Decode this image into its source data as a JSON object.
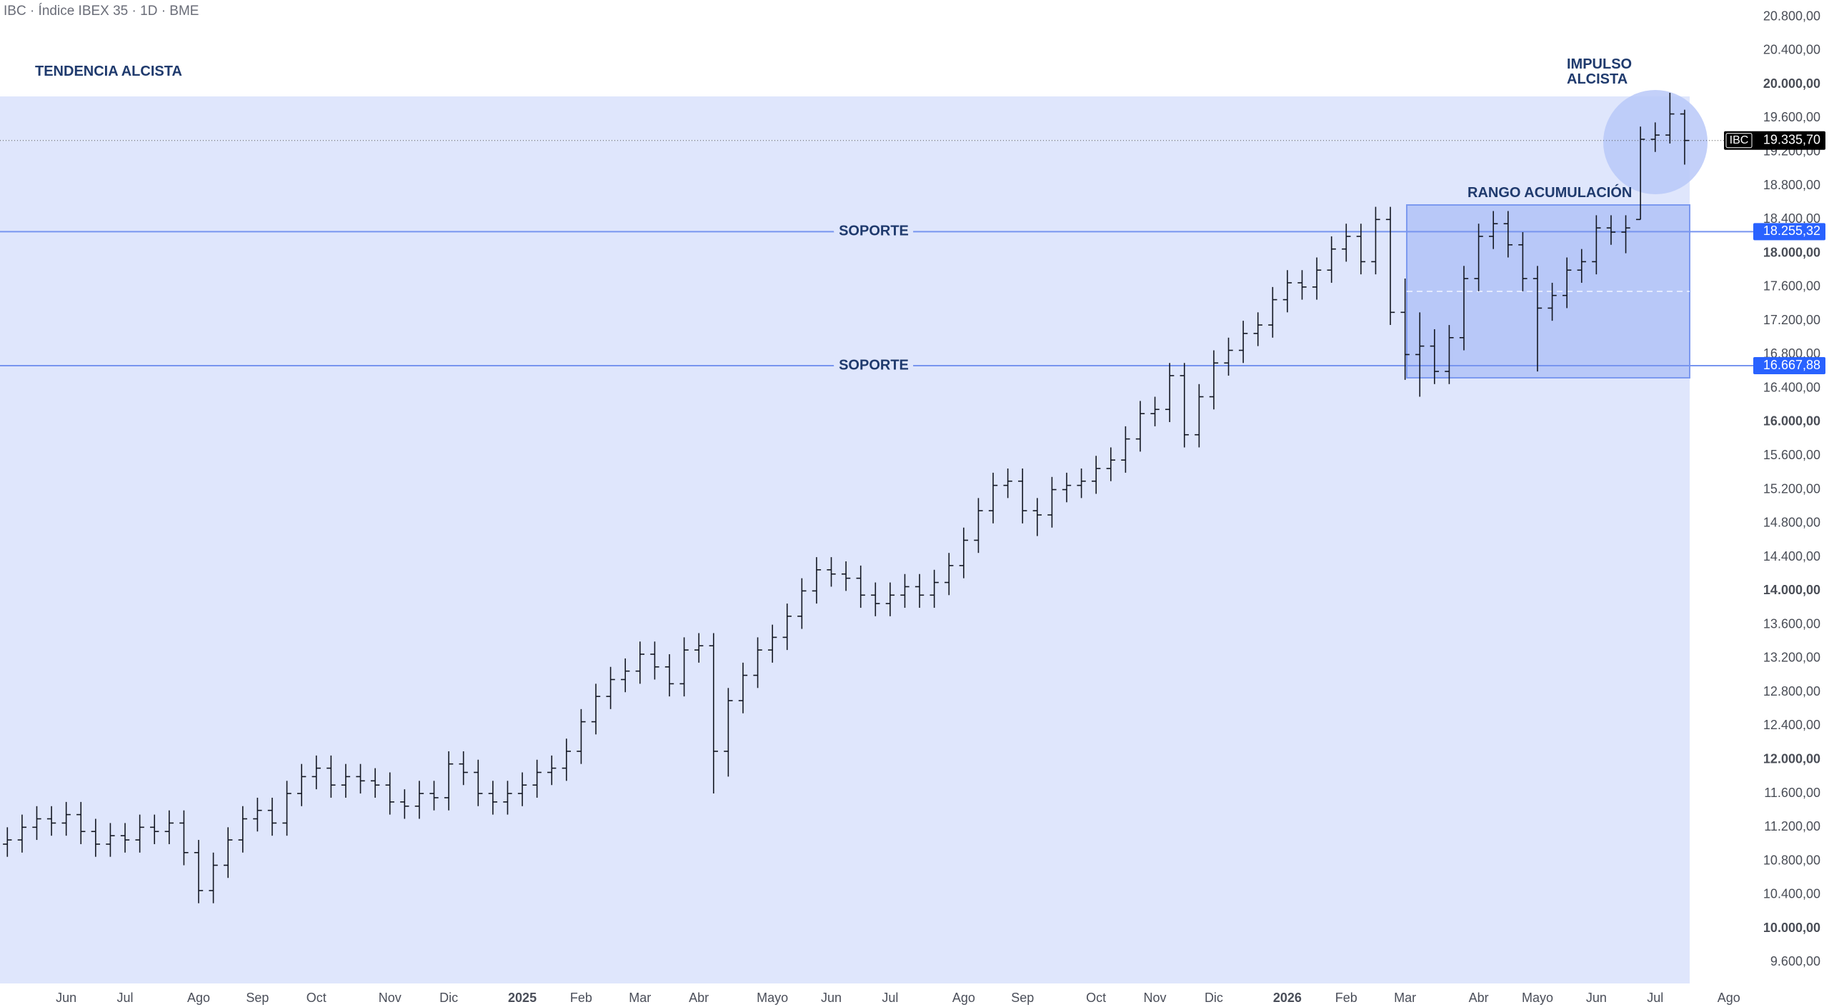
{
  "title": "IBC · Índice IBEX 35 · 1D · BME",
  "annotations": {
    "trend": "TENDENCIA ALCISTA",
    "impulse": "IMPULSO ALCISTA",
    "range": "RANGO ACUMULACIÓN"
  },
  "chart_data": {
    "type": "ohlc",
    "ylim": [
      9350,
      21000
    ],
    "yticks": [
      {
        "value": 9600,
        "label": "9.600,00"
      },
      {
        "value": 10000,
        "label": "10.000,00"
      },
      {
        "value": 10400,
        "label": "10.400,00"
      },
      {
        "value": 10800,
        "label": "10.800,00"
      },
      {
        "value": 11200,
        "label": "11.200,00"
      },
      {
        "value": 11600,
        "label": "11.600,00"
      },
      {
        "value": 12000,
        "label": "12.000,00"
      },
      {
        "value": 12400,
        "label": "12.400,00"
      },
      {
        "value": 12800,
        "label": "12.800,00"
      },
      {
        "value": 13200,
        "label": "13.200,00"
      },
      {
        "value": 13600,
        "label": "13.600,00"
      },
      {
        "value": 14000,
        "label": "14.000,00"
      },
      {
        "value": 14400,
        "label": "14.400,00"
      },
      {
        "value": 14800,
        "label": "14.800,00"
      },
      {
        "value": 15200,
        "label": "15.200,00"
      },
      {
        "value": 15600,
        "label": "15.600,00"
      },
      {
        "value": 16000,
        "label": "16.000,00"
      },
      {
        "value": 16400,
        "label": "16.400,00"
      },
      {
        "value": 16800,
        "label": "16.800,00"
      },
      {
        "value": 17200,
        "label": "17.200,00"
      },
      {
        "value": 17600,
        "label": "17.600,00"
      },
      {
        "value": 18000,
        "label": "18.000,00"
      },
      {
        "value": 18400,
        "label": "18.400,00"
      },
      {
        "value": 18800,
        "label": "18.800,00"
      },
      {
        "value": 19200,
        "label": "19.200,00"
      },
      {
        "value": 19600,
        "label": "19.600,00"
      },
      {
        "value": 20000,
        "label": "20.000,00"
      },
      {
        "value": 20400,
        "label": "20.400,00"
      },
      {
        "value": 20800,
        "label": "20.800,00"
      }
    ],
    "categories": [
      null,
      null,
      null,
      null,
      "Jun",
      null,
      null,
      null,
      "Jul",
      null,
      null,
      null,
      null,
      "Ago",
      null,
      null,
      null,
      "Sep",
      null,
      null,
      null,
      "Oct",
      null,
      null,
      null,
      null,
      "Nov",
      null,
      null,
      null,
      "Dic",
      null,
      null,
      null,
      null,
      "2025",
      null,
      null,
      null,
      "Feb",
      null,
      null,
      null,
      "Mar",
      null,
      null,
      null,
      "Abr",
      null,
      null,
      null,
      null,
      "Mayo",
      null,
      null,
      null,
      "Jun",
      null,
      null,
      null,
      "Jul",
      null,
      null,
      null,
      null,
      "Ago",
      null,
      null,
      null,
      "Sep",
      null,
      null,
      null,
      null,
      "Oct",
      null,
      null,
      null,
      "Nov",
      null,
      null,
      null,
      "Dic",
      null,
      null,
      null,
      null,
      "2026",
      null,
      null,
      null,
      "Feb",
      null,
      null,
      null,
      "Mar",
      null,
      null,
      null,
      null,
      "Abr",
      null,
      null,
      null,
      "Mayo",
      null,
      null,
      null,
      "Jun",
      null,
      null,
      null,
      "Jul",
      null,
      null,
      null,
      null,
      "Ago"
    ],
    "series": [
      {
        "name": "IBC",
        "color": "#131722",
        "open": [
          11000,
          11050,
          11200,
          11300,
          11250,
          11350,
          11150,
          11000,
          11100,
          11050,
          11200,
          11150,
          11250,
          10900,
          10450,
          10750,
          11050,
          11300,
          11400,
          11250,
          11600,
          11800,
          11900,
          11700,
          11800,
          11750,
          11700,
          11500,
          11450,
          11600,
          11550,
          11950,
          11850,
          11600,
          11500,
          11600,
          11700,
          11850,
          11900,
          12100,
          12450,
          12750,
          12950,
          13050,
          13250,
          13100,
          12900,
          13300,
          13350,
          12100,
          12700,
          13000,
          13300,
          13450,
          13700,
          14000,
          14250,
          14200,
          14150,
          13950,
          13850,
          13950,
          14050,
          13950,
          14100,
          14300,
          14600,
          14950,
          15250,
          15300,
          14950,
          14900,
          15200,
          15250,
          15300,
          15450,
          15550,
          15800,
          16100,
          16150,
          16550,
          15850,
          16300,
          16700,
          16850,
          17050,
          17150,
          17450,
          17650,
          17600,
          17800,
          18050,
          18200,
          17900,
          18400,
          17300,
          16800,
          16900,
          16600,
          17000,
          17700,
          18200,
          18350,
          18100,
          17700,
          17350,
          17500,
          17800,
          17900,
          18300,
          18250,
          18400,
          19350,
          19400,
          19650,
          null,
          null,
          null
        ],
        "high": [
          11200,
          11350,
          11450,
          11450,
          11500,
          11500,
          11300,
          11250,
          11250,
          11350,
          11350,
          11400,
          11400,
          11050,
          10900,
          11200,
          11450,
          11550,
          11550,
          11750,
          11950,
          12050,
          12050,
          11950,
          11950,
          11900,
          11850,
          11650,
          11750,
          11750,
          12100,
          12100,
          12000,
          11750,
          11750,
          11850,
          12000,
          12050,
          12250,
          12600,
          12900,
          13100,
          13200,
          13400,
          13400,
          13250,
          13450,
          13500,
          13500,
          12850,
          13150,
          13450,
          13600,
          13850,
          14150,
          14400,
          14400,
          14350,
          14300,
          14100,
          14100,
          14200,
          14200,
          14250,
          14450,
          14750,
          15100,
          15400,
          15450,
          15450,
          15100,
          15350,
          15400,
          15450,
          15600,
          15700,
          15950,
          16250,
          16300,
          16700,
          16700,
          16450,
          16850,
          17000,
          17200,
          17300,
          17600,
          17800,
          17800,
          17950,
          18200,
          18350,
          18350,
          18550,
          18550,
          17700,
          17300,
          17100,
          17150,
          17850,
          18350,
          18500,
          18500,
          18250,
          17850,
          17650,
          17950,
          18050,
          18450,
          18450,
          18450,
          19500,
          19550,
          19900,
          19700,
          null,
          null,
          null
        ],
        "low": [
          10850,
          10900,
          11050,
          11100,
          11100,
          11000,
          10850,
          10850,
          10900,
          10900,
          11000,
          11000,
          10750,
          10300,
          10300,
          10600,
          10900,
          11150,
          11100,
          11100,
          11450,
          11650,
          11550,
          11550,
          11600,
          11550,
          11350,
          11300,
          11300,
          11400,
          11400,
          11700,
          11450,
          11350,
          11350,
          11450,
          11550,
          11700,
          11750,
          11950,
          12300,
          12600,
          12800,
          12900,
          12950,
          12750,
          12750,
          13150,
          11600,
          11800,
          12550,
          12850,
          13150,
          13300,
          13550,
          13850,
          14050,
          14000,
          13800,
          13700,
          13700,
          13800,
          13800,
          13800,
          13950,
          14150,
          14450,
          14800,
          15100,
          14800,
          14650,
          14750,
          15050,
          15100,
          15150,
          15300,
          15400,
          15650,
          15950,
          16000,
          15700,
          15700,
          16150,
          16550,
          16700,
          16900,
          17000,
          17300,
          17450,
          17450,
          17650,
          17900,
          17750,
          17750,
          17150,
          16500,
          16300,
          16450,
          16450,
          16850,
          17550,
          18050,
          17950,
          17550,
          16600,
          17200,
          17350,
          17650,
          17750,
          18100,
          18000,
          18400,
          19200,
          19300,
          19050,
          null,
          null,
          null
        ],
        "close": [
          11050,
          11200,
          11300,
          11250,
          11350,
          11150,
          11000,
          11100,
          11050,
          11200,
          11150,
          11250,
          10900,
          10450,
          10750,
          11050,
          11300,
          11400,
          11250,
          11600,
          11800,
          11900,
          11700,
          11800,
          11750,
          11700,
          11500,
          11450,
          11600,
          11550,
          11950,
          11850,
          11600,
          11500,
          11600,
          11700,
          11850,
          11900,
          12100,
          12450,
          12750,
          12950,
          13050,
          13250,
          13100,
          12900,
          13300,
          13350,
          12100,
          12700,
          13000,
          13300,
          13450,
          13700,
          14000,
          14250,
          14200,
          14150,
          13950,
          13850,
          13950,
          14050,
          13950,
          14100,
          14300,
          14600,
          14950,
          15250,
          15300,
          14950,
          14900,
          15200,
          15250,
          15300,
          15450,
          15550,
          15800,
          16100,
          16150,
          16550,
          15850,
          16300,
          16700,
          16850,
          17050,
          17150,
          17450,
          17650,
          17600,
          17800,
          18050,
          18200,
          17900,
          18400,
          17300,
          16800,
          16900,
          16600,
          17000,
          17700,
          18200,
          18350,
          18100,
          17700,
          17350,
          17500,
          17800,
          17900,
          18300,
          18250,
          18300,
          19350,
          19400,
          19650,
          19336,
          null,
          null,
          null
        ]
      }
    ],
    "price_line": {
      "value": 19335.7,
      "label": "19.335,70"
    },
    "supports": [
      {
        "value": 18255.32,
        "label": "18.255,32",
        "text": "SOPORTE"
      },
      {
        "value": 16667.88,
        "label": "16.667,88",
        "text": "SOPORTE"
      }
    ]
  }
}
